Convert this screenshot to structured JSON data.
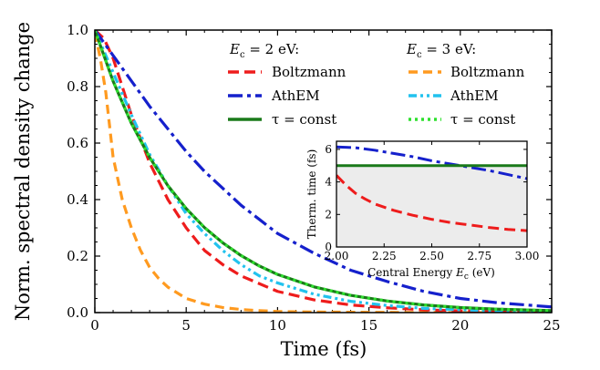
{
  "chart_data": [
    {
      "type": "line",
      "title": "",
      "xlabel": "Time (fs)",
      "ylabel": "Norm. spectral density change",
      "xlim": [
        0,
        25
      ],
      "ylim": [
        0,
        1.0
      ],
      "xticks": [
        "0",
        "5",
        "10",
        "15",
        "20",
        "25"
      ],
      "yticks": [
        "0.0",
        "0.2",
        "0.4",
        "0.6",
        "0.8",
        "1.0"
      ],
      "legend_groups": [
        {
          "header": "Ec = 2 eV:",
          "header_italic": "E",
          "header_sub": "c",
          "header_rest": " = 2 eV:"
        },
        {
          "header": "Ec = 3 eV:",
          "header_italic": "E",
          "header_sub": "c",
          "header_rest": " = 3 eV:"
        }
      ],
      "series": [
        {
          "name": "Boltzmann",
          "group": "Ec = 2 eV",
          "color": "#ee1c1c",
          "dash": "12,6",
          "x": [
            0,
            0.5,
            1,
            1.5,
            2,
            3,
            4,
            5,
            6,
            7,
            8,
            10,
            12,
            14,
            16,
            18,
            20,
            22,
            25
          ],
          "y": [
            1.0,
            0.97,
            0.9,
            0.8,
            0.7,
            0.53,
            0.4,
            0.3,
            0.22,
            0.17,
            0.13,
            0.075,
            0.045,
            0.027,
            0.017,
            0.01,
            0.006,
            0.004,
            0.002
          ]
        },
        {
          "name": "AthEM",
          "group": "Ec = 2 eV",
          "color": "#1520cc",
          "dash": "16,5,4,5",
          "x": [
            0,
            1,
            2,
            3,
            4,
            5,
            6,
            7,
            8,
            9,
            10,
            12,
            14,
            16,
            18,
            20,
            22,
            25
          ],
          "y": [
            1.0,
            0.91,
            0.82,
            0.73,
            0.65,
            0.57,
            0.5,
            0.44,
            0.38,
            0.33,
            0.28,
            0.21,
            0.15,
            0.11,
            0.075,
            0.05,
            0.035,
            0.02
          ]
        },
        {
          "name": "τ = const",
          "group": "Ec = 2 eV",
          "color": "#1a7a1a",
          "dash": "",
          "x": [
            0,
            1,
            2,
            3,
            4,
            5,
            6,
            7,
            8,
            9,
            10,
            12,
            14,
            16,
            18,
            20,
            22,
            25
          ],
          "y": [
            1.0,
            0.819,
            0.67,
            0.549,
            0.449,
            0.368,
            0.301,
            0.247,
            0.202,
            0.165,
            0.135,
            0.091,
            0.061,
            0.041,
            0.027,
            0.018,
            0.012,
            0.007
          ]
        },
        {
          "name": "Boltzmann",
          "group": "Ec = 3 eV",
          "color": "#ff9a1f",
          "dash": "10,6",
          "x": [
            0,
            0.3,
            0.6,
            1,
            1.5,
            2,
            2.5,
            3,
            3.5,
            4,
            5,
            6,
            7,
            8,
            9,
            10,
            12,
            15,
            20,
            25
          ],
          "y": [
            0.99,
            0.9,
            0.78,
            0.55,
            0.4,
            0.3,
            0.22,
            0.16,
            0.12,
            0.09,
            0.05,
            0.03,
            0.018,
            0.011,
            0.007,
            0.004,
            0.002,
            0.001,
            0.0,
            0.0
          ]
        },
        {
          "name": "AthEM",
          "group": "Ec = 3 eV",
          "color": "#22c2ee",
          "dash": "9,4,3,4,3,4",
          "x": [
            0,
            1,
            2,
            3,
            4,
            5,
            6,
            7,
            8,
            9,
            10,
            12,
            14,
            16,
            18,
            20,
            22,
            25
          ],
          "y": [
            1.0,
            0.85,
            0.7,
            0.56,
            0.45,
            0.35,
            0.28,
            0.22,
            0.17,
            0.13,
            0.105,
            0.065,
            0.04,
            0.025,
            0.015,
            0.01,
            0.006,
            0.003
          ]
        },
        {
          "name": "τ = const",
          "group": "Ec = 3 eV",
          "color": "#2ee02e",
          "dash": "3,4",
          "x": [
            0,
            1,
            2,
            3,
            4,
            5,
            6,
            7,
            8,
            9,
            10,
            12,
            14,
            16,
            18,
            20,
            22,
            25
          ],
          "y": [
            1.0,
            0.819,
            0.67,
            0.549,
            0.449,
            0.368,
            0.301,
            0.247,
            0.202,
            0.165,
            0.135,
            0.091,
            0.061,
            0.041,
            0.027,
            0.018,
            0.012,
            0.007
          ]
        }
      ]
    },
    {
      "type": "line",
      "title": "",
      "xlabel": "Central Energy Ec (eV)",
      "xlabel_prefix": "Central Energy ",
      "xlabel_italic": "E",
      "xlabel_sub": "c",
      "xlabel_suffix": " (eV)",
      "ylabel": "Therm. time (fs)",
      "xlim": [
        2.0,
        3.0
      ],
      "ylim": [
        0,
        6.5
      ],
      "xticks": [
        "2.00",
        "2.25",
        "2.50",
        "2.75",
        "3.00"
      ],
      "yticks": [
        "0",
        "2",
        "4",
        "6"
      ],
      "shaded_region": "grey fill below τ = const line",
      "series": [
        {
          "name": "Boltzmann",
          "color": "#ee1c1c",
          "dash": "12,6",
          "x": [
            2.0,
            2.05,
            2.1,
            2.15,
            2.2,
            2.3,
            2.4,
            2.5,
            2.6,
            2.7,
            2.8,
            2.9,
            3.0
          ],
          "y": [
            4.4,
            3.8,
            3.3,
            2.95,
            2.65,
            2.25,
            1.95,
            1.7,
            1.5,
            1.35,
            1.2,
            1.08,
            1.0
          ]
        },
        {
          "name": "AthEM",
          "color": "#1520cc",
          "dash": "16,5,4,5",
          "x": [
            2.0,
            2.1,
            2.2,
            2.3,
            2.4,
            2.5,
            2.6,
            2.7,
            2.8,
            2.9,
            3.0
          ],
          "y": [
            6.15,
            6.1,
            5.95,
            5.75,
            5.55,
            5.3,
            5.1,
            4.9,
            4.7,
            4.45,
            4.2
          ]
        },
        {
          "name": "τ = const",
          "color": "#1a7a1a",
          "dash": "",
          "x": [
            2.0,
            3.0
          ],
          "y": [
            5.0,
            5.0
          ]
        }
      ]
    }
  ]
}
